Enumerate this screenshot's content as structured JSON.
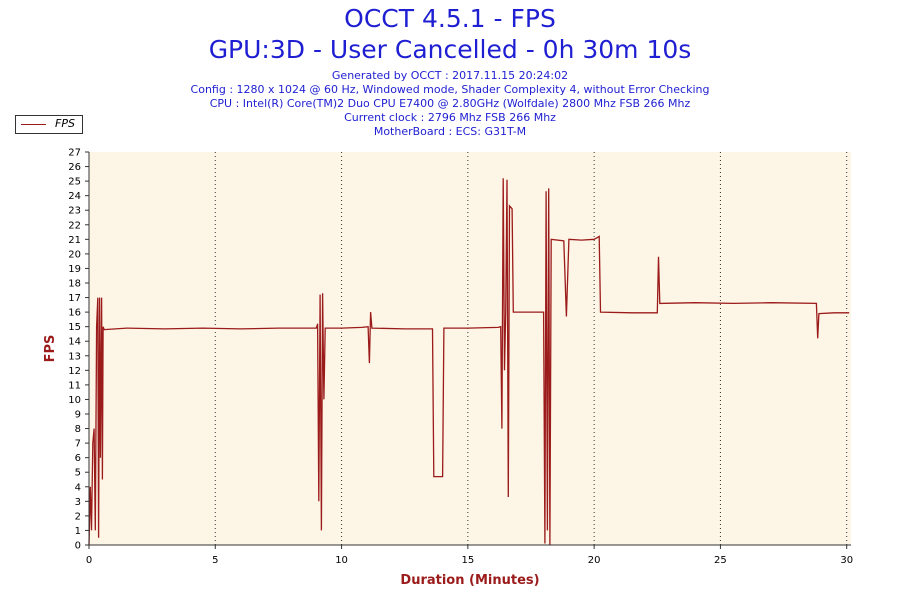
{
  "header": {
    "title": "OCCT 4.5.1 - FPS",
    "subtitle": "GPU:3D - User Cancelled - 0h 30m 10s",
    "info_lines": [
      "Generated by OCCT : 2017.11.15 20:24:02",
      "Config : 1280 x 1024 @ 60 Hz, Windowed mode, Shader Complexity 4, without Error Checking",
      "CPU : Intel(R) Core(TM)2 Duo CPU E7400 @ 2.80GHz (Wolfdale) 2800 Mhz FSB 266 Mhz",
      "Current clock : 2796 Mhz FSB 266 Mhz",
      "MotherBoard : ECS: G31T-M"
    ]
  },
  "colors": {
    "series": "#9b1a1a",
    "plot_bg": "#fdf5e6",
    "title": "#1e1ed2"
  },
  "chart_data": {
    "type": "line",
    "title": "OCCT 4.5.1 - FPS",
    "xlabel": "Duration (Minutes)",
    "ylabel": "FPS",
    "xlim": [
      0,
      30.17
    ],
    "ylim": [
      0,
      27
    ],
    "x_ticks": [
      0,
      5,
      10,
      15,
      20,
      25,
      30
    ],
    "y_ticks": [
      0,
      1,
      2,
      3,
      4,
      5,
      6,
      7,
      8,
      9,
      10,
      11,
      12,
      13,
      14,
      15,
      16,
      17,
      18,
      19,
      20,
      21,
      22,
      23,
      24,
      25,
      26,
      27
    ],
    "grid": "vertical dotted",
    "legend": {
      "position": "top-left",
      "entries": [
        "FPS"
      ]
    },
    "series": [
      {
        "name": "FPS",
        "points": [
          [
            0.0,
            0
          ],
          [
            0.05,
            4
          ],
          [
            0.1,
            1
          ],
          [
            0.15,
            7
          ],
          [
            0.2,
            8
          ],
          [
            0.25,
            1
          ],
          [
            0.3,
            15
          ],
          [
            0.35,
            17
          ],
          [
            0.38,
            0.5
          ],
          [
            0.42,
            17
          ],
          [
            0.45,
            6
          ],
          [
            0.5,
            17
          ],
          [
            0.53,
            4.5
          ],
          [
            0.56,
            15
          ],
          [
            0.6,
            14.8
          ],
          [
            1.5,
            14.9
          ],
          [
            3.0,
            14.85
          ],
          [
            4.5,
            14.9
          ],
          [
            6.0,
            14.85
          ],
          [
            7.5,
            14.9
          ],
          [
            9.0,
            14.9
          ],
          [
            9.05,
            15.2
          ],
          [
            9.1,
            3
          ],
          [
            9.15,
            17.2
          ],
          [
            9.2,
            1
          ],
          [
            9.25,
            17.3
          ],
          [
            9.3,
            10
          ],
          [
            9.35,
            14.9
          ],
          [
            10.0,
            14.9
          ],
          [
            10.8,
            14.95
          ],
          [
            11.05,
            15.0
          ],
          [
            11.1,
            12.5
          ],
          [
            11.15,
            16
          ],
          [
            11.2,
            14.9
          ],
          [
            12.5,
            14.85
          ],
          [
            13.6,
            14.85
          ],
          [
            13.65,
            4.7
          ],
          [
            14.0,
            4.7
          ],
          [
            14.05,
            14.9
          ],
          [
            15.0,
            14.9
          ],
          [
            16.2,
            14.95
          ],
          [
            16.3,
            15
          ],
          [
            16.35,
            8
          ],
          [
            16.4,
            25.2
          ],
          [
            16.45,
            12
          ],
          [
            16.5,
            16
          ],
          [
            16.55,
            25.1
          ],
          [
            16.6,
            3.3
          ],
          [
            16.65,
            23.3
          ],
          [
            16.75,
            23.1
          ],
          [
            16.8,
            16
          ],
          [
            17.5,
            16
          ],
          [
            18.0,
            16
          ],
          [
            18.05,
            0.1
          ],
          [
            18.1,
            24.3
          ],
          [
            18.15,
            1
          ],
          [
            18.2,
            24.5
          ],
          [
            18.25,
            0
          ],
          [
            18.3,
            21
          ],
          [
            18.8,
            20.9
          ],
          [
            18.9,
            15.7
          ],
          [
            19.0,
            21
          ],
          [
            19.5,
            20.95
          ],
          [
            20.0,
            21
          ],
          [
            20.1,
            21.1
          ],
          [
            20.2,
            21.2
          ],
          [
            20.25,
            16
          ],
          [
            21.5,
            15.95
          ],
          [
            22.5,
            15.95
          ],
          [
            22.55,
            19.8
          ],
          [
            22.6,
            16.6
          ],
          [
            24.0,
            16.65
          ],
          [
            25.5,
            16.6
          ],
          [
            27.0,
            16.65
          ],
          [
            28.8,
            16.6
          ],
          [
            28.85,
            14.2
          ],
          [
            28.9,
            15.9
          ],
          [
            29.5,
            15.95
          ],
          [
            30.1,
            15.95
          ]
        ]
      }
    ]
  }
}
